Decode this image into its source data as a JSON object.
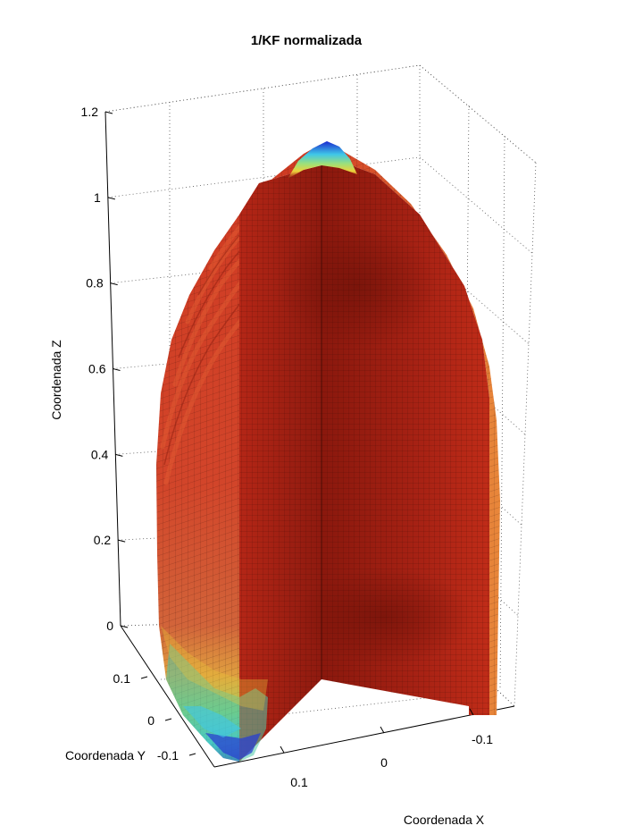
{
  "chart_data": {
    "type": "surface3d",
    "title": "1/KF normalizada",
    "xlabel": "Coordenada X",
    "ylabel": "Coordenada Y",
    "zlabel": "Coordenada Z",
    "zlim": [
      0,
      1.2
    ],
    "z_ticks": [
      "0",
      "0.2",
      "0.4",
      "0.6",
      "0.8",
      "1",
      "1.2"
    ],
    "y_ticks": [
      "0.1",
      "0",
      "-0.1"
    ],
    "x_ticks": [
      "0.1",
      "0",
      "-0.1"
    ],
    "grid": true,
    "colormap": "jet",
    "surface_values": {
      "interior_cut_faces": 1.0,
      "outer_shell_mid": 0.95,
      "top_apex": 0.05,
      "bottom_rim": 0.25
    },
    "colors": {
      "dark_red": "#8a1a0e",
      "red": "#c3301c",
      "orange": "#e8873a",
      "yellow": "#ecd23a",
      "green": "#5fd28a",
      "cyan": "#3fc7e8",
      "blue": "#2233cc"
    }
  }
}
